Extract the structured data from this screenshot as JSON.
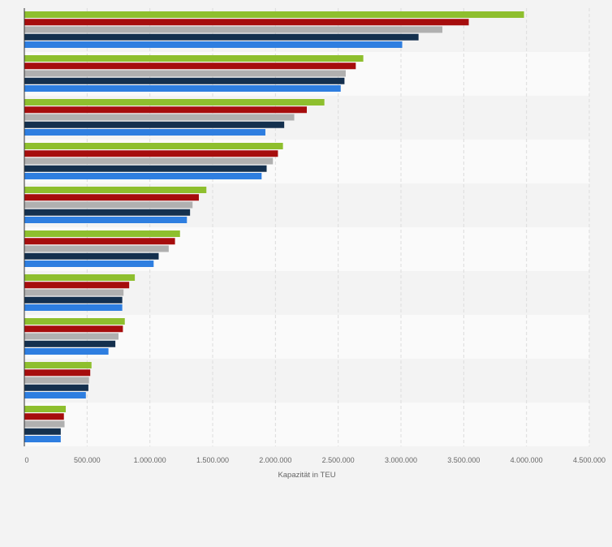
{
  "chart_data": {
    "type": "bar",
    "orientation": "horizontal",
    "xlabel": "Kapazität in TEU",
    "xlim": [
      0,
      4500000
    ],
    "x_ticks": [
      0,
      500000,
      1000000,
      1500000,
      2000000,
      2500000,
      3000000,
      3500000,
      4000000,
      4500000
    ],
    "x_tick_labels": [
      "0",
      "500.000",
      "1.000.000",
      "1.500.000",
      "2.000.000",
      "2.500.000",
      "3.000.000",
      "3.500.000",
      "4.000.000",
      "4.500.000"
    ],
    "grid": true,
    "legend": "none",
    "colors": [
      "#8ebf2e",
      "#a60d0d",
      "#b0b0b0",
      "#14304e",
      "#2e7ee0"
    ],
    "series": [
      {
        "values": [
          3980000,
          2700000,
          2390000,
          2060000,
          1450000,
          1240000,
          880000,
          800000,
          535000,
          330000
        ]
      },
      {
        "values": [
          3540000,
          2640000,
          2250000,
          2020000,
          1390000,
          1200000,
          835000,
          785000,
          525000,
          315000
        ]
      },
      {
        "values": [
          3330000,
          2560000,
          2150000,
          1980000,
          1340000,
          1150000,
          790000,
          750000,
          515000,
          320000
        ]
      },
      {
        "values": [
          3140000,
          2550000,
          2070000,
          1930000,
          1320000,
          1070000,
          780000,
          725000,
          510000,
          290000
        ]
      },
      {
        "values": [
          3010000,
          2520000,
          1920000,
          1890000,
          1295000,
          1030000,
          780000,
          670000,
          490000,
          290000
        ]
      }
    ]
  }
}
